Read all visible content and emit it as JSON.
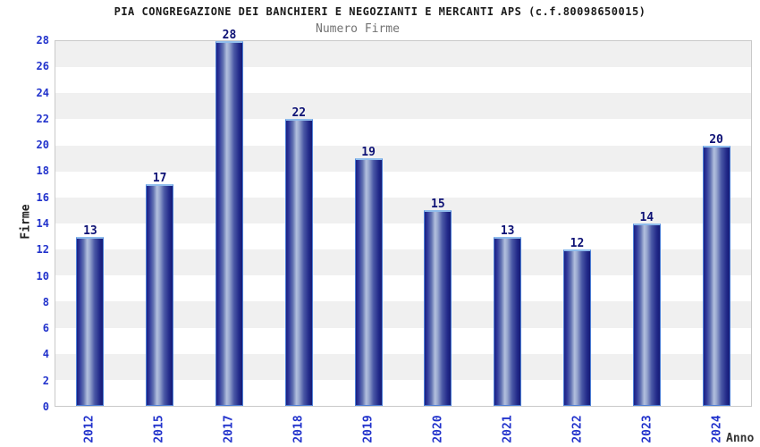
{
  "chart_data": {
    "type": "bar",
    "title": "PIA CONGREGAZIONE DEI BANCHIERI E NEGOZIANTI E MERCANTI APS (c.f.80098650015)",
    "subtitle": "Numero Firme",
    "categories": [
      "2012",
      "2015",
      "2017",
      "2018",
      "2019",
      "2020",
      "2021",
      "2022",
      "2023",
      "2024"
    ],
    "values": [
      13,
      17,
      28,
      22,
      19,
      15,
      13,
      12,
      14,
      20
    ],
    "xlabel": "Anno",
    "ylabel": "Firme",
    "ylim": [
      0,
      28
    ],
    "ytick_step": 2,
    "yticks": [
      0,
      2,
      4,
      6,
      8,
      10,
      12,
      14,
      16,
      18,
      20,
      22,
      24,
      26,
      28
    ],
    "grid": "horizontal-bands-alternating",
    "legend": "none",
    "bar_label_position": "above"
  },
  "colors": {
    "tick_label_blue": "#2233cc",
    "bar_value_navy": "#0d1175",
    "bar_dark": "#1b2183",
    "bar_light": "#b3c0de",
    "bar_border": "#4d7fd6",
    "bar_border_top": "#8fbcec",
    "band_gray": "#f0f0f0",
    "band_white": "#ffffff",
    "plot_border": "#c9c9c9",
    "title_color": "#1a1a1a",
    "subtitle_color": "#737373"
  }
}
